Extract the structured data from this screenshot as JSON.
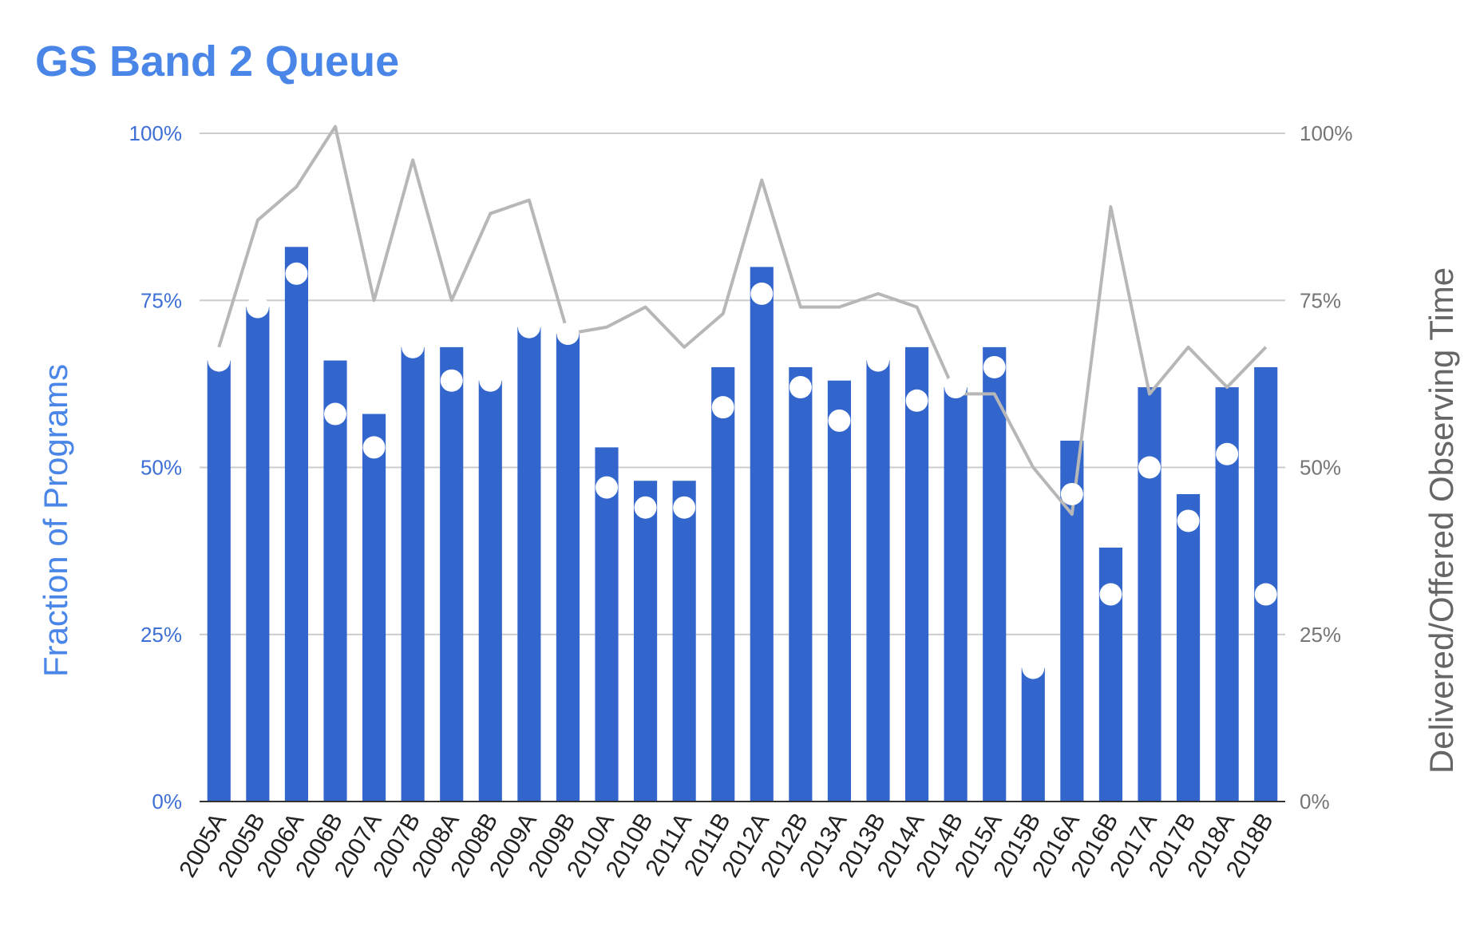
{
  "chart_data": {
    "type": "bar",
    "title": "GS Band 2 Queue",
    "ylabel": "Fraction of Programs",
    "ylabel_right": "Delivered/Offered Observing Time",
    "ylim": [
      0,
      100
    ],
    "ylim_right": [
      0,
      100
    ],
    "yticks": [
      "0%",
      "25%",
      "50%",
      "75%",
      "100%"
    ],
    "yticks_right": [
      "0%",
      "25%",
      "50%",
      "75%",
      "100%"
    ],
    "grid": true,
    "categories": [
      "2005A",
      "2005B",
      "2006A",
      "2006B",
      "2007A",
      "2007B",
      "2008A",
      "2008B",
      "2009A",
      "2009B",
      "2010A",
      "2010B",
      "2011A",
      "2011B",
      "2012A",
      "2012B",
      "2013A",
      "2013B",
      "2014A",
      "2014B",
      "2015A",
      "2015B",
      "2016A",
      "2016B",
      "2017A",
      "2017B",
      "2018A",
      "2018B"
    ],
    "series": [
      {
        "type": "bar",
        "axis": "left",
        "color": "#3366cc",
        "values": [
          66,
          74,
          83,
          66,
          58,
          68,
          68,
          63,
          71,
          70,
          53,
          48,
          48,
          65,
          80,
          65,
          63,
          66,
          68,
          62,
          68,
          20,
          54,
          38,
          62,
          46,
          62,
          65
        ]
      },
      {
        "type": "scatter",
        "axis": "left",
        "color": "#ffffff",
        "values": [
          66,
          74,
          79,
          58,
          53,
          68,
          63,
          63,
          71,
          70,
          47,
          44,
          44,
          59,
          76,
          62,
          57,
          66,
          60,
          62,
          65,
          20,
          46,
          31,
          50,
          42,
          52,
          31
        ]
      },
      {
        "type": "line",
        "axis": "right",
        "color": "#b7b7b7",
        "values": [
          68,
          87,
          92,
          101,
          75,
          96,
          75,
          88,
          90,
          70,
          71,
          74,
          68,
          73,
          93,
          74,
          74,
          76,
          74,
          61,
          61,
          50,
          43,
          89,
          61,
          68,
          62,
          68
        ]
      }
    ]
  }
}
